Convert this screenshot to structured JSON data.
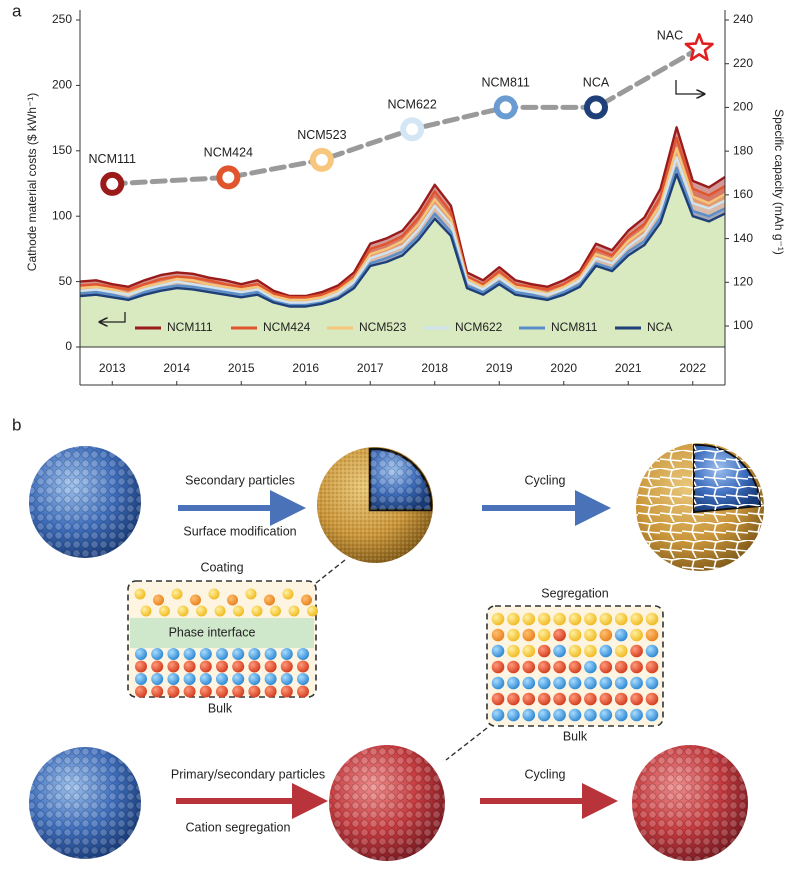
{
  "panel_labels": [
    "a",
    "b"
  ],
  "chart_data": {
    "type": "area",
    "ylabel": "Cathode material costs ($ kWh⁻¹)",
    "y2label": "Specific capacity (mAh g⁻¹)",
    "x": [
      2013,
      2013.25,
      2013.5,
      2013.75,
      2014,
      2014.25,
      2014.5,
      2014.75,
      2015,
      2015.25,
      2015.5,
      2015.75,
      2016,
      2016.25,
      2016.5,
      2016.75,
      2017,
      2017.25,
      2017.5,
      2017.75,
      2018,
      2018.25,
      2018.5,
      2018.75,
      2019,
      2019.25,
      2019.5,
      2019.75,
      2020,
      2020.25,
      2020.5,
      2020.75,
      2021,
      2021.25,
      2021.5,
      2021.75,
      2022,
      2022.25,
      2022.5,
      2022.75,
      2023
    ],
    "series": [
      {
        "name": "NCM111",
        "color": "#9b1b1b",
        "values": [
          50,
          51,
          48,
          46,
          51,
          55,
          57,
          56,
          53,
          51,
          48,
          51,
          43,
          39,
          39,
          42,
          47,
          57,
          79,
          83,
          89,
          104,
          124,
          108,
          57,
          51,
          61,
          51,
          48,
          46,
          51,
          58,
          79,
          74,
          89,
          99,
          121,
          168,
          127,
          122,
          130
        ]
      },
      {
        "name": "NCM424",
        "color": "#e0552e",
        "values": [
          47,
          48,
          46,
          44,
          48,
          52,
          54,
          53,
          51,
          48,
          46,
          48,
          41,
          38,
          38,
          40,
          45,
          54,
          75,
          79,
          85,
          99,
          119,
          103,
          54,
          48,
          58,
          48,
          46,
          44,
          48,
          56,
          75,
          70,
          85,
          94,
          115,
          160,
          121,
          116,
          123
        ]
      },
      {
        "name": "NCM523",
        "color": "#f5c57a",
        "values": [
          45,
          46,
          44,
          41,
          46,
          49,
          52,
          51,
          48,
          46,
          44,
          46,
          39,
          36,
          36,
          38,
          43,
          52,
          71,
          75,
          81,
          94,
          113,
          98,
          52,
          46,
          55,
          46,
          44,
          41,
          46,
          53,
          71,
          67,
          81,
          90,
          109,
          152,
          115,
          110,
          117
        ]
      },
      {
        "name": "NCM622",
        "color": "#cfe3f0",
        "values": [
          43,
          44,
          42,
          40,
          44,
          47,
          50,
          48,
          46,
          44,
          42,
          44,
          37,
          34,
          34,
          36,
          41,
          50,
          68,
          72,
          77,
          90,
          108,
          94,
          50,
          44,
          53,
          44,
          42,
          40,
          44,
          51,
          68,
          64,
          77,
          86,
          105,
          145,
          110,
          106,
          112
        ]
      },
      {
        "name": "NCM811",
        "color": "#5b8fc9",
        "values": [
          41,
          42,
          40,
          37,
          42,
          45,
          47,
          46,
          44,
          42,
          40,
          42,
          35,
          32,
          32,
          34,
          38,
          47,
          64,
          68,
          73,
          85,
          102,
          88,
          47,
          42,
          50,
          42,
          40,
          37,
          42,
          48,
          64,
          60,
          73,
          81,
          99,
          137,
          104,
          100,
          106
        ]
      },
      {
        "name": "NCA",
        "color": "#1f3f78",
        "values": [
          39,
          40,
          38,
          36,
          40,
          43,
          45,
          44,
          42,
          40,
          38,
          40,
          34,
          31,
          31,
          33,
          37,
          45,
          62,
          65,
          70,
          82,
          98,
          85,
          45,
          40,
          48,
          40,
          38,
          36,
          40,
          46,
          62,
          58,
          70,
          78,
          95,
          132,
          100,
          96,
          102
        ]
      }
    ],
    "fill_color": "#d9eac0",
    "xlim": [
      2013,
      2023
    ],
    "xticks": [
      {
        "value": 2013.5,
        "label": "2013"
      },
      {
        "value": 2014.5,
        "label": "2014"
      },
      {
        "value": 2015.5,
        "label": "2015"
      },
      {
        "value": 2016.5,
        "label": "2016"
      },
      {
        "value": 2017.5,
        "label": "2017"
      },
      {
        "value": 2018.5,
        "label": "2018"
      },
      {
        "value": 2019.5,
        "label": "2019"
      },
      {
        "value": 2020.5,
        "label": "2020"
      },
      {
        "value": 2021.5,
        "label": "2021"
      },
      {
        "value": 2022.5,
        "label": "2022"
      }
    ],
    "ylim": [
      0,
      250
    ],
    "yticks": [
      0,
      50,
      100,
      150,
      200,
      250
    ],
    "y2lim": [
      90.4,
      240
    ],
    "y2ticks": [
      100,
      120,
      140,
      160,
      180,
      200,
      220,
      240
    ],
    "legend": "lower center",
    "markers": {
      "axis": "y2",
      "labels": [
        "NCM111",
        "NCM424",
        "NCM523",
        "NCM622",
        "NCM811",
        "NCA",
        "NAC"
      ],
      "x": [
        2013.5,
        2015.3,
        2016.75,
        2018.15,
        2019.6,
        2021.0,
        2022.6
      ],
      "values": [
        165,
        168,
        176,
        190,
        200,
        200,
        227
      ],
      "colors": [
        "#9b1b1b",
        "#e0552e",
        "#f7c77e",
        "#d4e6f3",
        "#6a9bd1",
        "#1f3f78",
        "#e02020"
      ],
      "symbols": [
        "ring",
        "ring",
        "ring",
        "ring",
        "ring",
        "ring",
        "star"
      ]
    }
  },
  "diagram": {
    "steps": [
      {
        "above": "Secondary particles",
        "below": "Surface modification"
      },
      {
        "above": "Cycling"
      },
      {
        "above": "Primary/secondary particles",
        "below": "Cation segregation"
      },
      {
        "above": "Cycling"
      }
    ],
    "coating_box": {
      "title": "Coating",
      "middle": "Phase interface",
      "bottom": "Bulk"
    },
    "segregation_box": {
      "title": "Segregation",
      "bottom": "Bulk"
    }
  }
}
